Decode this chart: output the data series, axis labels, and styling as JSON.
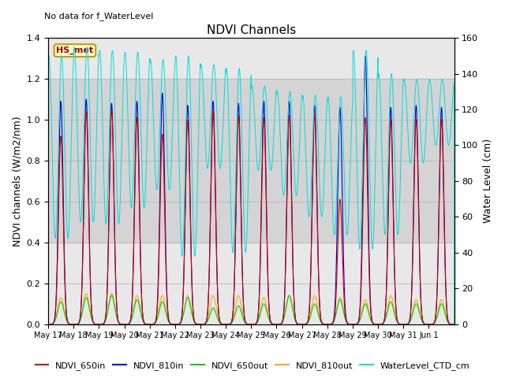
{
  "title": "NDVI Channels",
  "no_data_text": "No data for f_WaterLevel",
  "station_label": "HS_met",
  "ylabel_left": "NDVI channels (W/m2/nm)",
  "ylabel_right": "Water Level (cm)",
  "n_days": 16,
  "ylim_left": [
    0,
    1.4
  ],
  "ylim_right": [
    0,
    160
  ],
  "yticks_left": [
    0.0,
    0.2,
    0.4,
    0.6,
    0.8,
    1.0,
    1.2,
    1.4
  ],
  "yticks_right": [
    0,
    20,
    40,
    60,
    80,
    100,
    120,
    140,
    160
  ],
  "xticklabels": [
    "May 17",
    "May 18",
    "May 19",
    "May 20",
    "May 21",
    "May 22",
    "May 23",
    "May 24",
    "May 25",
    "May 26",
    "May 27",
    "May 28",
    "May 29",
    "May 30",
    "May 31",
    "Jun 1"
  ],
  "colors": {
    "ndvi_650in": "#cc0000",
    "ndvi_810in": "#0000cc",
    "ndvi_650out": "#00cc00",
    "ndvi_810out": "#ffaa00",
    "water_level": "#00dddd"
  },
  "legend_labels": [
    "NDVI_650in",
    "NDVI_810in",
    "NDVI_650out",
    "NDVI_810out",
    "WaterLevel_CTD_cm"
  ],
  "gray_band": [
    0.4,
    1.2
  ],
  "plot_bg": "#e8e8e8",
  "fig_bg": "#ffffff",
  "ndvi_peaks_810in": [
    1.09,
    1.1,
    1.08,
    1.09,
    1.13,
    1.07,
    1.09,
    1.08,
    1.09,
    1.09,
    1.07,
    1.06,
    1.31,
    1.06,
    1.07,
    1.06
  ],
  "ndvi_peaks_650in": [
    0.92,
    1.04,
    1.05,
    1.01,
    0.93,
    1.0,
    1.04,
    1.02,
    1.01,
    1.02,
    1.02,
    0.61,
    1.01,
    1.0,
    1.0,
    1.0
  ],
  "ndvi_peaks_650out": [
    0.11,
    0.13,
    0.14,
    0.12,
    0.11,
    0.13,
    0.08,
    0.09,
    0.1,
    0.14,
    0.1,
    0.12,
    0.1,
    0.11,
    0.1,
    0.1
  ],
  "ndvi_peaks_810out": [
    0.13,
    0.15,
    0.15,
    0.14,
    0.14,
    0.14,
    0.14,
    0.14,
    0.13,
    0.14,
    0.14,
    0.13,
    0.12,
    0.14,
    0.12,
    0.12
  ],
  "water_peaks": [
    150,
    155,
    153,
    152,
    148,
    150,
    145,
    143,
    133,
    130,
    128,
    127,
    153,
    140,
    137,
    137
  ],
  "water_troughs": [
    48,
    57,
    56,
    65,
    75,
    38,
    87,
    40,
    86,
    72,
    60,
    50,
    42,
    50,
    90,
    100
  ]
}
